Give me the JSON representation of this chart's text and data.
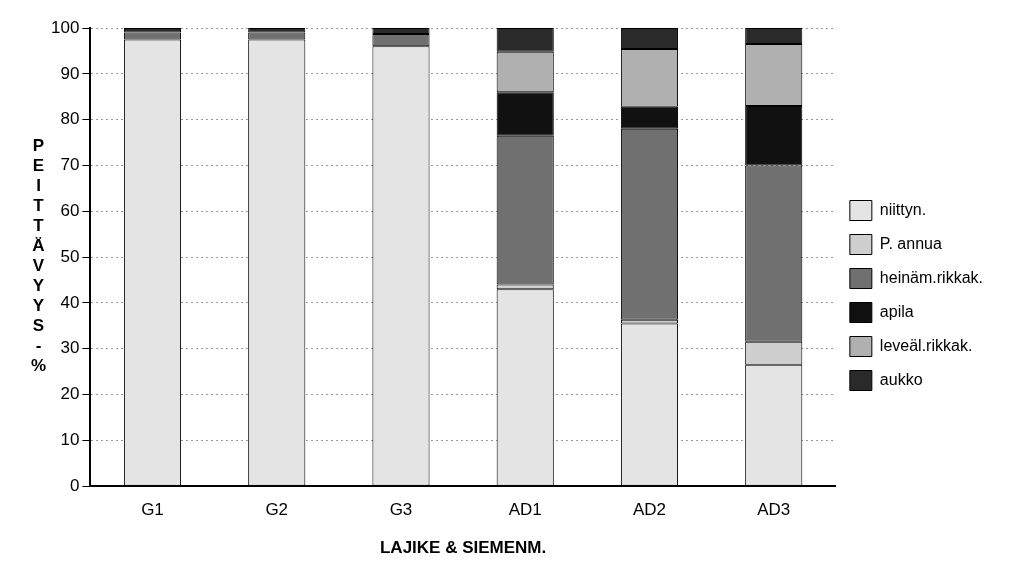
{
  "chart_data": {
    "type": "bar",
    "stacked": true,
    "xlabel": "LAJIKE & SIEMENM.",
    "ylabel": "PEITTÄVYYS-%",
    "categories": [
      "G1",
      "G2",
      "G3",
      "AD1",
      "AD2",
      "AD3"
    ],
    "series": [
      {
        "name": "niittyn.",
        "color": "#e4e4e4",
        "values": [
          97.5,
          97.5,
          96,
          43,
          35.5,
          26.5
        ]
      },
      {
        "name": "P. annua",
        "color": "#cfcfcf",
        "values": [
          0,
          0,
          0,
          1,
          0.8,
          5
        ]
      },
      {
        "name": "heinäm.rikkak.",
        "color": "#707070",
        "values": [
          1.5,
          1.5,
          2.7,
          32.5,
          41.7,
          38.5
        ]
      },
      {
        "name": "apila",
        "color": "#111111",
        "values": [
          0,
          0,
          0,
          9.5,
          4.8,
          13
        ]
      },
      {
        "name": "leveäl.rikkak.",
        "color": "#b0b0b0",
        "values": [
          0,
          0,
          0,
          8.8,
          12.6,
          13.5
        ]
      },
      {
        "name": "aukko",
        "color": "#2a2a2a",
        "values": [
          1,
          1,
          1.3,
          5.2,
          4.6,
          3.5
        ]
      }
    ],
    "ylim": [
      0,
      100
    ],
    "yticks": [
      0,
      10,
      20,
      30,
      40,
      50,
      60,
      70,
      80,
      90,
      100
    ],
    "grid": "y",
    "legend": "right"
  }
}
